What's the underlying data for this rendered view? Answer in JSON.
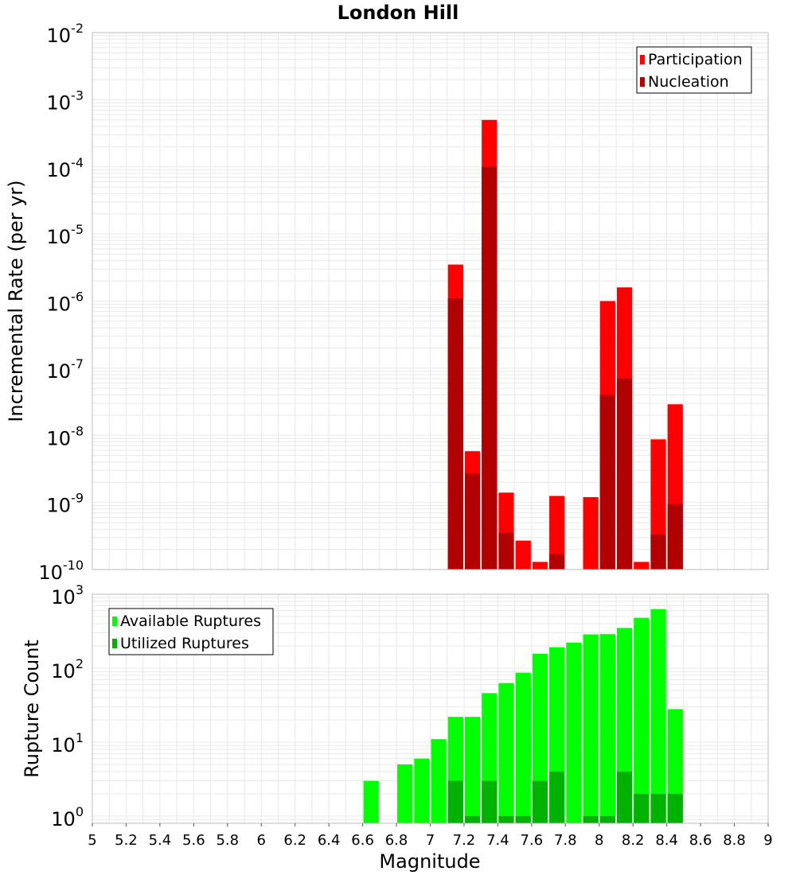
{
  "chart_data": {
    "title": "London Hill",
    "xlabel": "Magnitude",
    "xlim": [
      5,
      9
    ],
    "x_ticks": [
      "5",
      "5.2",
      "5.4",
      "5.6",
      "5.8",
      "6",
      "6.2",
      "6.4",
      "6.6",
      "6.8",
      "7",
      "7.2",
      "7.4",
      "7.6",
      "7.8",
      "8",
      "8.2",
      "8.4",
      "8.6",
      "8.8",
      "9"
    ],
    "bin_width": 0.1,
    "colors": {
      "participation": "#ff0000",
      "nucleation": "#b20000",
      "available": "#00ff00",
      "utilized": "#00b200",
      "grid": "#e8e8e8",
      "frame": "#bbbbbb"
    },
    "panels": [
      {
        "type": "bar",
        "ylabel": "Incremental Rate (per yr)",
        "yscale": "log",
        "ylim": [
          1e-10,
          0.01
        ],
        "y_ticks": [
          {
            "base": "10",
            "exp": "-2"
          },
          {
            "base": "10",
            "exp": "-3"
          },
          {
            "base": "10",
            "exp": "-4"
          },
          {
            "base": "10",
            "exp": "-5"
          },
          {
            "base": "10",
            "exp": "-6"
          },
          {
            "base": "10",
            "exp": "-7"
          },
          {
            "base": "10",
            "exp": "-8"
          },
          {
            "base": "10",
            "exp": "-9"
          },
          {
            "base": "10",
            "exp": "-10"
          }
        ],
        "legend": [
          "Participation",
          "Nucleation"
        ],
        "legend_position": "top-right",
        "series": [
          {
            "name": "Participation",
            "x": [
              7.15,
              7.25,
              7.35,
              7.45,
              7.55,
              7.65,
              7.75,
              7.95,
              8.05,
              8.15,
              8.25,
              8.35,
              8.45
            ],
            "values": [
              3.5e-06,
              5.8e-09,
              0.0005,
              1.4e-09,
              2.7e-10,
              1.3e-10,
              1.25e-09,
              1.2e-09,
              1e-06,
              1.6e-06,
              1.3e-10,
              8.7e-09,
              2.9e-08
            ]
          },
          {
            "name": "Nucleation",
            "x": [
              7.15,
              7.25,
              7.35,
              7.45,
              7.75,
              8.05,
              8.15,
              8.35,
              8.45
            ],
            "values": [
              1.1e-06,
              2.7e-09,
              0.0001,
              3.5e-10,
              1.7e-10,
              4e-08,
              7e-08,
              3.3e-10,
              9.5e-10
            ]
          }
        ]
      },
      {
        "type": "bar",
        "ylabel": "Rupture Count",
        "yscale": "log",
        "ylim": [
          0.8,
          1000
        ],
        "y_ticks": [
          {
            "base": "10",
            "exp": "3"
          },
          {
            "base": "10",
            "exp": "2"
          },
          {
            "base": "10",
            "exp": "1"
          },
          {
            "base": "10",
            "exp": "0"
          }
        ],
        "legend": [
          "Available Ruptures",
          "Utilized Ruptures"
        ],
        "legend_position": "top-left",
        "series": [
          {
            "name": "Available Ruptures",
            "x": [
              6.65,
              6.85,
              6.95,
              7.05,
              7.15,
              7.25,
              7.35,
              7.45,
              7.55,
              7.65,
              7.75,
              7.85,
              7.95,
              8.05,
              8.15,
              8.25,
              8.35,
              8.45
            ],
            "values": [
              3,
              5,
              6,
              11,
              22,
              22,
              46,
              63,
              87,
              157,
              192,
              222,
              286,
              289,
              350,
              480,
              630,
              28
            ]
          },
          {
            "name": "Utilized Ruptures",
            "x": [
              7.15,
              7.25,
              7.35,
              7.45,
              7.55,
              7.65,
              7.75,
              7.95,
              8.05,
              8.15,
              8.25,
              8.35,
              8.45
            ],
            "values": [
              3,
              1,
              3,
              1,
              1,
              3,
              4,
              1,
              1,
              4,
              2,
              2,
              2
            ]
          }
        ]
      }
    ]
  }
}
